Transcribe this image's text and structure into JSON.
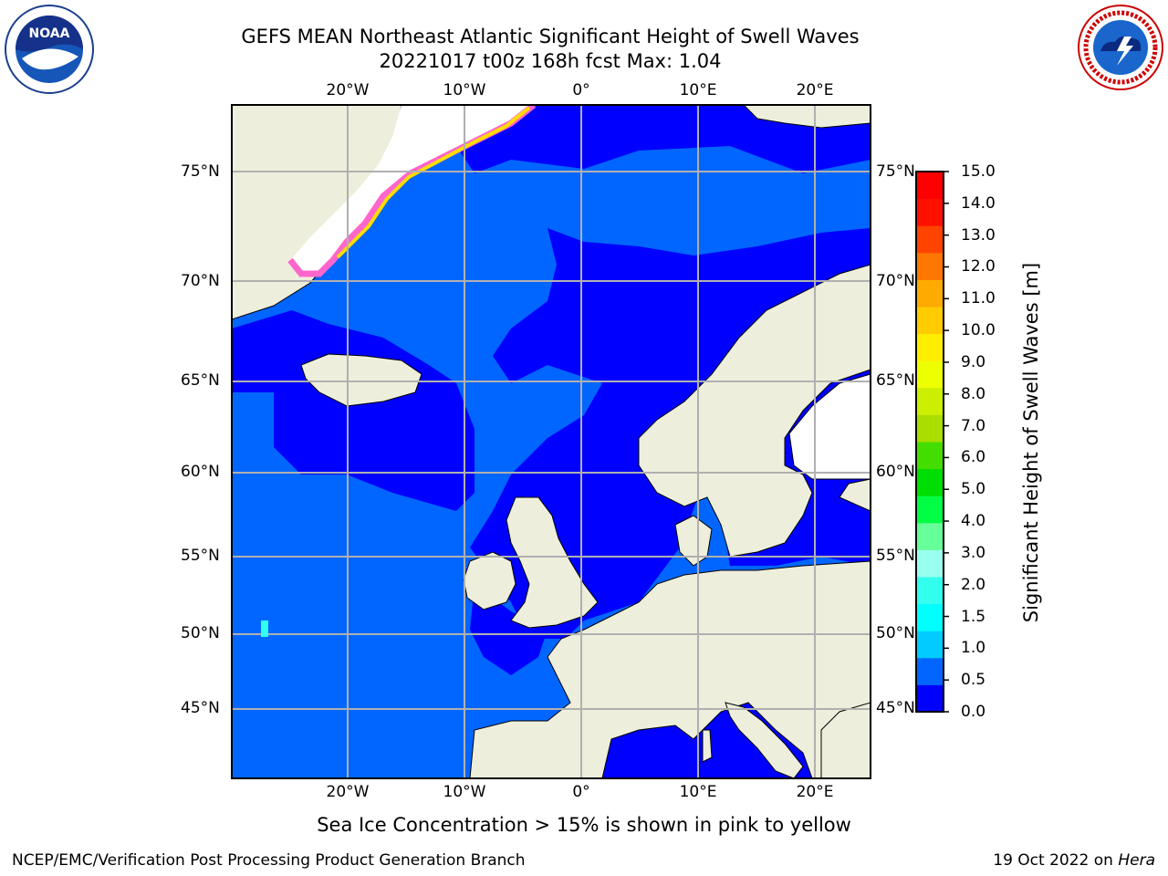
{
  "header": {
    "title_line1": "GEFS MEAN Northeast Atlantic Significant Height of Swell Waves",
    "title_line2": "20221017 t00z 168h fcst   Max: 1.04"
  },
  "logos": {
    "left": "NOAA",
    "right": "NATIONAL WEATHER SERVICE"
  },
  "map": {
    "lon_ticks": [
      "20°W",
      "10°W",
      "0°",
      "10°E",
      "20°E"
    ],
    "lat_ticks": [
      "75°N",
      "70°N",
      "65°N",
      "60°N",
      "55°N",
      "50°N",
      "45°N"
    ],
    "colors": {
      "ocean_low": "#0000ff",
      "ocean_mid": "#0066ff",
      "land": "#eeeedd",
      "ice": "#ffffff",
      "gridline": "#b0b0b0"
    }
  },
  "colorbar": {
    "label": "Significant Height of Swell Waves [m]",
    "ticks": [
      "15.0",
      "14.0",
      "13.0",
      "12.0",
      "11.0",
      "10.0",
      "9.0",
      "8.0",
      "7.0",
      "6.0",
      "5.0",
      "4.0",
      "3.0",
      "2.0",
      "1.5",
      "1.0",
      "0.5",
      "0.0"
    ],
    "colors": [
      "#0000ff",
      "#0066ff",
      "#00ccff",
      "#00ffff",
      "#33ffee",
      "#99ffee",
      "#66ff99",
      "#00ff44",
      "#00dd00",
      "#44dd00",
      "#aadd00",
      "#ccee00",
      "#eeff00",
      "#ffee00",
      "#ffcc00",
      "#ffaa00",
      "#ff7700",
      "#ff4400",
      "#ff1100",
      "#ff0000"
    ]
  },
  "footer": {
    "note": "Sea Ice Concentration > 15% is shown in pink to yellow",
    "left": "NCEP/EMC/Verification Post Processing Product Generation Branch",
    "right_prefix": "19 Oct 2022 on ",
    "right_host": "Hera"
  }
}
